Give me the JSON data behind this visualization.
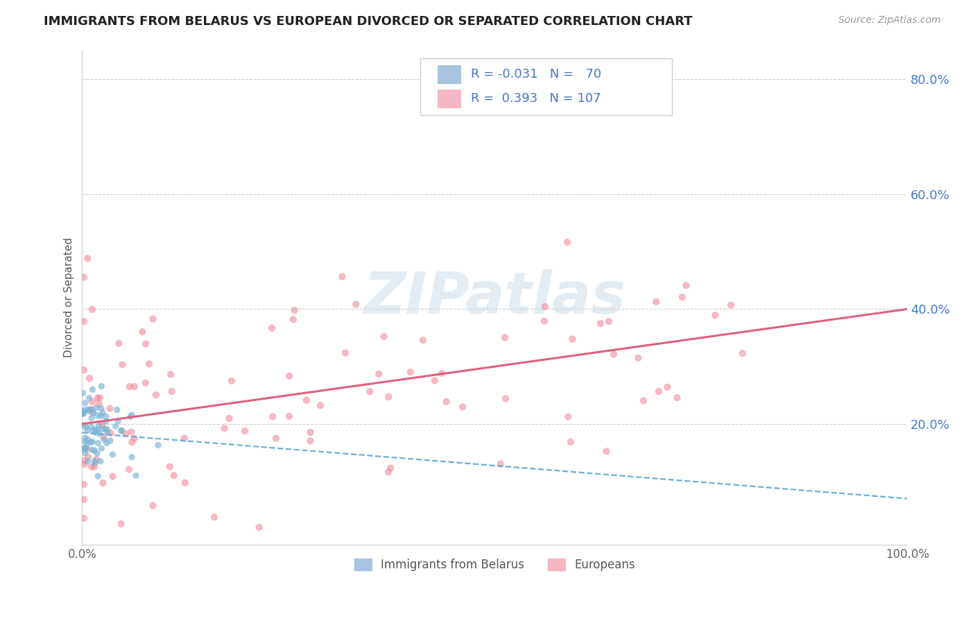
{
  "title": "IMMIGRANTS FROM BELARUS VS EUROPEAN DIVORCED OR SEPARATED CORRELATION CHART",
  "source": "Source: ZipAtlas.com",
  "ylabel": "Divorced or Separated",
  "series1": {
    "name": "Immigrants from Belarus",
    "R": -0.031,
    "N": 70,
    "marker_color": "#7ab3d4",
    "line_color": "#6baed6",
    "patch_color": "#a8c4e0"
  },
  "series2": {
    "name": "Europeans",
    "R": 0.393,
    "N": 107,
    "marker_color": "#f08090",
    "line_color": "#e06080",
    "patch_color": "#f4b8c4"
  },
  "background_color": "#ffffff",
  "grid_color": "#cccccc",
  "watermark_color": "#ccdde8",
  "label_color": "#4477cc",
  "title_color": "#222222",
  "source_color": "#999999",
  "legend_text_color": "#4477cc",
  "ytick_color": "#4477cc",
  "xtick_color": "#666666"
}
